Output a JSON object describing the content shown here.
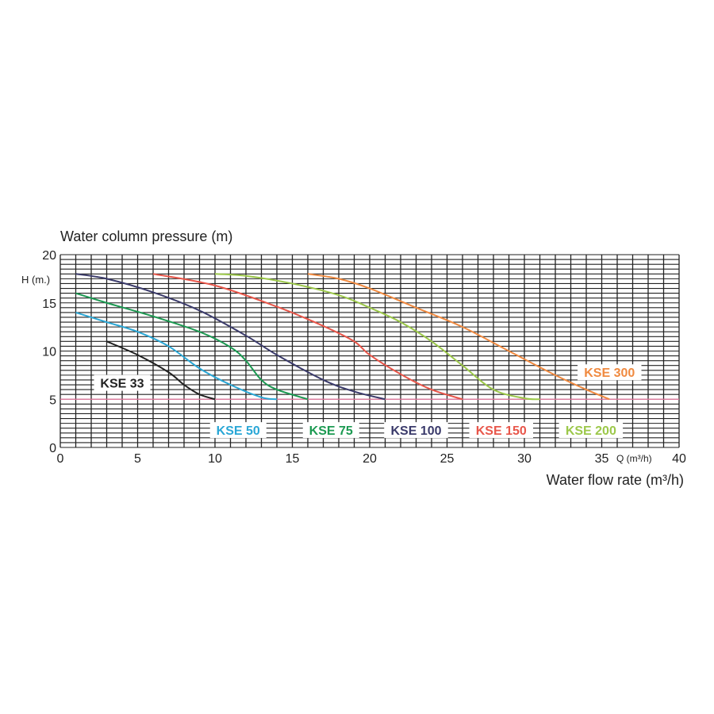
{
  "chart_data": {
    "type": "line",
    "ylabel": "Water column pressure (m)",
    "xlabel": "Water flow rate (m³/h)",
    "y_unit_label": "H (m.)",
    "x_unit_label": "Q (m³/h)",
    "xlim": [
      0,
      40
    ],
    "ylim": [
      0,
      20
    ],
    "x_ticks": [
      0,
      5,
      10,
      15,
      20,
      25,
      30,
      35,
      40
    ],
    "y_ticks": [
      0,
      5,
      10,
      15,
      20
    ],
    "grid": true,
    "reference_line": {
      "y": 5,
      "color": "#e87aa0"
    },
    "series": [
      {
        "name": "KSE 33",
        "color": "#222222",
        "points": [
          [
            3,
            11
          ],
          [
            5,
            9.6
          ],
          [
            7,
            7.8
          ],
          [
            8,
            6.5
          ],
          [
            9,
            5.5
          ],
          [
            10,
            5
          ]
        ]
      },
      {
        "name": "KSE 50",
        "color": "#2aa7d6",
        "points": [
          [
            1,
            14
          ],
          [
            3,
            13
          ],
          [
            5,
            12
          ],
          [
            7,
            10.5
          ],
          [
            9,
            8.2
          ],
          [
            11,
            6.5
          ],
          [
            13,
            5.2
          ],
          [
            14,
            5
          ]
        ]
      },
      {
        "name": "KSE 75",
        "color": "#1c9a52",
        "points": [
          [
            1,
            16
          ],
          [
            3,
            15
          ],
          [
            6,
            13.6
          ],
          [
            9,
            12
          ],
          [
            11,
            10.4
          ],
          [
            12,
            9
          ],
          [
            13,
            7
          ],
          [
            14,
            6
          ],
          [
            16,
            5
          ]
        ]
      },
      {
        "name": "KSE 100",
        "color": "#3b3b6b",
        "points": [
          [
            1,
            18
          ],
          [
            3,
            17.5
          ],
          [
            6,
            16.1
          ],
          [
            9,
            14.2
          ],
          [
            12,
            11.6
          ],
          [
            14,
            9.6
          ],
          [
            17,
            7
          ],
          [
            19,
            5.8
          ],
          [
            21,
            5
          ]
        ]
      },
      {
        "name": "KSE 150",
        "color": "#e8564a",
        "points": [
          [
            6,
            18
          ],
          [
            10,
            16.8
          ],
          [
            14,
            14.6
          ],
          [
            17,
            12.6
          ],
          [
            19,
            11
          ],
          [
            20,
            9.6
          ],
          [
            22,
            7.6
          ],
          [
            24,
            6
          ],
          [
            26,
            5
          ]
        ]
      },
      {
        "name": "KSE 200",
        "color": "#9cc84a",
        "points": [
          [
            10,
            18
          ],
          [
            12,
            17.8
          ],
          [
            15,
            17
          ],
          [
            18,
            15.8
          ],
          [
            20,
            14.5
          ],
          [
            22,
            13
          ],
          [
            24,
            11
          ],
          [
            26,
            8.5
          ],
          [
            28,
            6
          ],
          [
            30,
            5.1
          ],
          [
            31,
            5
          ]
        ]
      },
      {
        "name": "KSE 300",
        "color": "#f08a40",
        "points": [
          [
            16,
            18
          ],
          [
            18,
            17.5
          ],
          [
            20,
            16.5
          ],
          [
            23,
            14.5
          ],
          [
            26,
            12.5
          ],
          [
            29,
            10
          ],
          [
            32,
            7.5
          ],
          [
            34,
            6
          ],
          [
            35.5,
            5
          ]
        ]
      }
    ],
    "annotations": [
      {
        "text": "KSE 33",
        "x": 4,
        "y": 6.7,
        "color": "#222222"
      },
      {
        "text": "KSE 50",
        "x": 11.5,
        "y": 1.8,
        "color": "#2aa7d6"
      },
      {
        "text": "KSE 75",
        "x": 17.5,
        "y": 1.8,
        "color": "#1c9a52"
      },
      {
        "text": "KSE 100",
        "x": 23,
        "y": 1.8,
        "color": "#3b3b6b"
      },
      {
        "text": "KSE 150",
        "x": 28.5,
        "y": 1.8,
        "color": "#e8564a"
      },
      {
        "text": "KSE 200",
        "x": 34.3,
        "y": 1.8,
        "color": "#9cc84a"
      },
      {
        "text": "KSE 300",
        "x": 35.5,
        "y": 7.8,
        "color": "#f08a40"
      }
    ]
  }
}
